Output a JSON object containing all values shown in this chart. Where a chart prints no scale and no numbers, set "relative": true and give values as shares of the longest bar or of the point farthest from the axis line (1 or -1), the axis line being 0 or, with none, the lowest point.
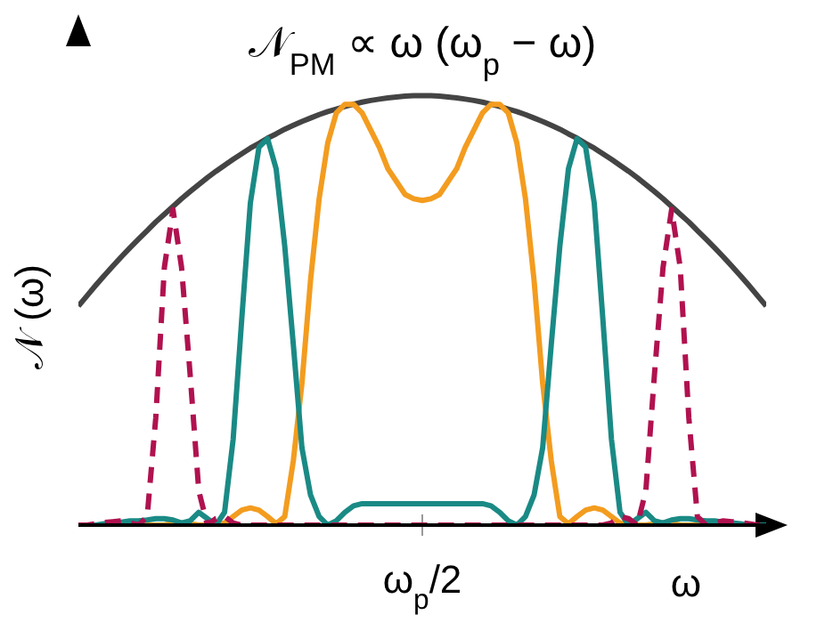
{
  "chart_data": {
    "type": "line",
    "title": "𝒩$_{PM}$ ∝ ω (ω$_{p}$ − ω)",
    "xlabel": "ω",
    "ylabel": "𝒩 (ω)",
    "relative": true,
    "annotations": [
      "ω$_{p}$/2"
    ],
    "grid": false,
    "legend": false,
    "marker": "none",
    "line_style": "solid",
    "categories": [
      null,
      null,
      null,
      null,
      null,
      null,
      null,
      null,
      null,
      null,
      null,
      null,
      null,
      null,
      null,
      null,
      null,
      null,
      null,
      null,
      null,
      null,
      null,
      null,
      null,
      null,
      null,
      null,
      null,
      null,
      null,
      null,
      null,
      null,
      null,
      null,
      null,
      null,
      null,
      null,
      null,
      null,
      null,
      null,
      null,
      null,
      null,
      null,
      null,
      null,
      null,
      null,
      null,
      null,
      null,
      null,
      null,
      null,
      null,
      null,
      null,
      null,
      null,
      null,
      null,
      null,
      null,
      null,
      null,
      null,
      null,
      null,
      null,
      null,
      null,
      null,
      null,
      null,
      null,
      null,
      null
    ],
    "series": [
      {
        "color": "#444444",
        "values": [
          0.51,
          0.534,
          0.558,
          0.581,
          0.603,
          0.625,
          0.646,
          0.666,
          0.686,
          0.706,
          0.724,
          0.742,
          0.76,
          0.777,
          0.793,
          0.809,
          0.824,
          0.838,
          0.852,
          0.865,
          0.878,
          0.889,
          0.901,
          0.911,
          0.922,
          0.931,
          0.94,
          0.948,
          0.956,
          0.963,
          0.969,
          0.975,
          0.98,
          0.985,
          0.989,
          0.992,
          0.995,
          0.997,
          0.999,
          1,
          1,
          1,
          0.999,
          0.997,
          0.995,
          0.992,
          0.989,
          0.985,
          0.98,
          0.975,
          0.969,
          0.963,
          0.956,
          0.948,
          0.94,
          0.931,
          0.922,
          0.911,
          0.901,
          0.889,
          0.878,
          0.865,
          0.852,
          0.838,
          0.824,
          0.809,
          0.793,
          0.777,
          0.76,
          0.742,
          0.724,
          0.706,
          0.686,
          0.666,
          0.646,
          0.625,
          0.603,
          0.581,
          0.558,
          0.534,
          0.51
        ]
      },
      {
        "color": "#f39c1f",
        "values": [
          null,
          null,
          null,
          null,
          null,
          null,
          0,
          0,
          0,
          0,
          0,
          0.005,
          0.005,
          0.003,
          0,
          0,
          0,
          0.005,
          0.02,
          0.035,
          0.04,
          0.035,
          0.02,
          0.003,
          0.02,
          0.15,
          0.33,
          0.57,
          0.76,
          0.89,
          0.96,
          0.98,
          0.98,
          0.96,
          0.92,
          0.88,
          0.83,
          0.8,
          0.77,
          0.76,
          0.756,
          0.76,
          0.77,
          0.8,
          0.83,
          0.88,
          0.92,
          0.96,
          0.98,
          0.98,
          0.96,
          0.89,
          0.76,
          0.57,
          0.33,
          0.15,
          0.02,
          0.003,
          0.02,
          0.035,
          0.04,
          0.035,
          0.02,
          0.005,
          0,
          0,
          0,
          0.003,
          0.005,
          0.005,
          0,
          0,
          0,
          0,
          0,
          null,
          null,
          null,
          null,
          null,
          null
        ]
      },
      {
        "color": "#1a8a85",
        "values": [
          0,
          0,
          0,
          0.003,
          0.005,
          0.007,
          0.01,
          0.01,
          0.012,
          0.015,
          0.015,
          0.012,
          0.005,
          0.01,
          0.03,
          0.015,
          0,
          0.03,
          0.2,
          0.48,
          0.75,
          0.88,
          0.9,
          0.83,
          0.65,
          0.42,
          0.18,
          0.07,
          0.02,
          0,
          0.01,
          0.03,
          0.045,
          0.05,
          0.05,
          0.05,
          0.05,
          0.05,
          0.05,
          0.05,
          0.05,
          0.05,
          0.05,
          0.05,
          0.05,
          0.05,
          0.05,
          0.05,
          0.045,
          0.03,
          0.01,
          0,
          0.02,
          0.07,
          0.18,
          0.42,
          0.65,
          0.83,
          0.9,
          0.88,
          0.75,
          0.48,
          0.2,
          0.03,
          0,
          0.015,
          0.03,
          0.01,
          0.005,
          0.012,
          0.015,
          0.015,
          0.012,
          0.01,
          0.01,
          0.007,
          0.005,
          0.003,
          0,
          0,
          0
        ]
      },
      {
        "color": "#b0124f",
        "line_style": "dashed",
        "values": [
          0,
          0,
          0.003,
          0.006,
          0.008,
          0.01,
          0.005,
          0,
          0.02,
          0.25,
          0.6,
          0.735,
          0.6,
          0.35,
          0.08,
          0,
          0.015,
          0.02,
          0.005,
          0,
          0,
          0,
          0,
          0,
          0,
          0,
          0,
          0,
          0,
          0,
          0,
          0,
          0,
          0,
          0,
          0,
          0,
          0,
          0,
          0,
          0,
          0,
          0,
          0,
          0,
          0,
          0,
          0,
          0,
          0,
          0,
          0,
          0,
          0,
          0,
          0,
          0,
          0,
          0,
          0,
          0,
          0,
          0.005,
          0.02,
          0.015,
          0,
          0.08,
          0.35,
          0.6,
          0.735,
          0.6,
          0.25,
          0.02,
          0,
          0.005,
          0.01,
          0.008,
          0.006,
          0.003,
          0,
          0
        ]
      }
    ]
  }
}
